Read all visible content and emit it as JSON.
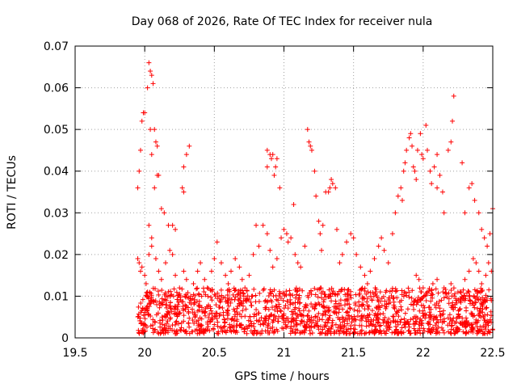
{
  "chart_data": {
    "type": "scatter",
    "title": "Day 068 of 2026, Rate Of TEC Index for receiver nula",
    "xlabel": "GPS time / hours",
    "ylabel": "ROTI / TECUs",
    "xlim": [
      19.5,
      22.5
    ],
    "ylim": [
      0,
      0.07
    ],
    "x_ticks": [
      19.5,
      20,
      20.5,
      21,
      21.5,
      22,
      22.5
    ],
    "x_tick_labels": [
      "19.5",
      "20",
      "20.5",
      "21",
      "21.5",
      "22",
      "22.5"
    ],
    "y_ticks": [
      0,
      0.01,
      0.02,
      0.03,
      0.04,
      0.05,
      0.06,
      0.07
    ],
    "y_tick_labels": [
      "0",
      "0.01",
      "0.02",
      "0.03",
      "0.04",
      "0.05",
      "0.06",
      "0.07"
    ],
    "grid": true,
    "marker": "+",
    "color": "#ff0000",
    "series": [
      {
        "name": "ROTI",
        "points": [
          [
            19.95,
            0.036
          ],
          [
            19.96,
            0.04
          ],
          [
            19.97,
            0.045
          ],
          [
            19.98,
            0.052
          ],
          [
            19.99,
            0.054
          ],
          [
            20.0,
            0.054
          ],
          [
            20.02,
            0.06
          ],
          [
            20.03,
            0.066
          ],
          [
            20.04,
            0.064
          ],
          [
            20.05,
            0.063
          ],
          [
            20.06,
            0.061
          ],
          [
            20.04,
            0.05
          ],
          [
            20.07,
            0.05
          ],
          [
            20.08,
            0.047
          ],
          [
            20.09,
            0.046
          ],
          [
            20.05,
            0.044
          ],
          [
            20.07,
            0.036
          ],
          [
            20.09,
            0.039
          ],
          [
            20.1,
            0.039
          ],
          [
            20.12,
            0.031
          ],
          [
            20.14,
            0.03
          ],
          [
            20.03,
            0.027
          ],
          [
            20.05,
            0.024
          ],
          [
            20.17,
            0.027
          ],
          [
            20.2,
            0.027
          ],
          [
            20.22,
            0.026
          ],
          [
            20.27,
            0.036
          ],
          [
            20.28,
            0.041
          ],
          [
            20.3,
            0.044
          ],
          [
            20.32,
            0.046
          ],
          [
            20.28,
            0.035
          ],
          [
            19.95,
            0.019
          ],
          [
            19.96,
            0.018
          ],
          [
            19.98,
            0.017
          ],
          [
            20.0,
            0.015
          ],
          [
            20.01,
            0.013
          ],
          [
            20.02,
            0.011
          ],
          [
            19.97,
            0.016
          ],
          [
            20.03,
            0.02
          ],
          [
            20.05,
            0.022
          ],
          [
            20.08,
            0.019
          ],
          [
            20.1,
            0.016
          ],
          [
            20.12,
            0.014
          ],
          [
            20.15,
            0.018
          ],
          [
            20.18,
            0.021
          ],
          [
            20.2,
            0.02
          ],
          [
            20.22,
            0.015
          ],
          [
            20.25,
            0.012
          ],
          [
            20.28,
            0.016
          ],
          [
            20.3,
            0.014
          ],
          [
            20.33,
            0.01
          ],
          [
            20.35,
            0.013
          ],
          [
            20.38,
            0.016
          ],
          [
            20.4,
            0.018
          ],
          [
            20.43,
            0.014
          ],
          [
            20.45,
            0.012
          ],
          [
            20.48,
            0.016
          ],
          [
            20.5,
            0.019
          ],
          [
            20.52,
            0.023
          ],
          [
            20.55,
            0.018
          ],
          [
            20.58,
            0.015
          ],
          [
            20.6,
            0.013
          ],
          [
            20.62,
            0.016
          ],
          [
            20.65,
            0.019
          ],
          [
            20.68,
            0.017
          ],
          [
            20.7,
            0.014
          ],
          [
            20.72,
            0.012
          ],
          [
            20.75,
            0.015
          ],
          [
            20.78,
            0.02
          ],
          [
            20.8,
            0.027
          ],
          [
            20.82,
            0.022
          ],
          [
            20.85,
            0.027
          ],
          [
            20.88,
            0.025
          ],
          [
            20.9,
            0.021
          ],
          [
            20.92,
            0.017
          ],
          [
            20.95,
            0.019
          ],
          [
            20.98,
            0.024
          ],
          [
            20.88,
            0.045
          ],
          [
            20.9,
            0.044
          ],
          [
            20.91,
            0.043
          ],
          [
            20.92,
            0.044
          ],
          [
            20.93,
            0.039
          ],
          [
            20.94,
            0.041
          ],
          [
            20.95,
            0.043
          ],
          [
            20.97,
            0.036
          ],
          [
            20.88,
            0.041
          ],
          [
            21.0,
            0.026
          ],
          [
            21.02,
            0.025
          ],
          [
            21.03,
            0.023
          ],
          [
            21.05,
            0.024
          ],
          [
            21.07,
            0.032
          ],
          [
            21.08,
            0.02
          ],
          [
            21.1,
            0.018
          ],
          [
            21.12,
            0.017
          ],
          [
            21.15,
            0.022
          ],
          [
            21.17,
            0.05
          ],
          [
            21.18,
            0.047
          ],
          [
            21.19,
            0.046
          ],
          [
            21.2,
            0.045
          ],
          [
            21.22,
            0.04
          ],
          [
            21.23,
            0.034
          ],
          [
            21.25,
            0.028
          ],
          [
            21.26,
            0.025
          ],
          [
            21.27,
            0.021
          ],
          [
            21.28,
            0.027
          ],
          [
            21.3,
            0.035
          ],
          [
            21.32,
            0.035
          ],
          [
            21.33,
            0.036
          ],
          [
            21.34,
            0.038
          ],
          [
            21.35,
            0.037
          ],
          [
            21.37,
            0.036
          ],
          [
            21.38,
            0.026
          ],
          [
            21.4,
            0.018
          ],
          [
            21.42,
            0.02
          ],
          [
            21.45,
            0.023
          ],
          [
            21.48,
            0.025
          ],
          [
            21.5,
            0.024
          ],
          [
            21.52,
            0.02
          ],
          [
            21.55,
            0.017
          ],
          [
            21.58,
            0.015
          ],
          [
            21.6,
            0.013
          ],
          [
            21.62,
            0.016
          ],
          [
            21.65,
            0.019
          ],
          [
            21.68,
            0.022
          ],
          [
            21.7,
            0.024
          ],
          [
            21.72,
            0.021
          ],
          [
            21.75,
            0.018
          ],
          [
            21.78,
            0.025
          ],
          [
            21.8,
            0.03
          ],
          [
            21.82,
            0.034
          ],
          [
            21.84,
            0.036
          ],
          [
            21.86,
            0.04
          ],
          [
            21.87,
            0.042
          ],
          [
            21.88,
            0.045
          ],
          [
            21.9,
            0.048
          ],
          [
            21.91,
            0.049
          ],
          [
            21.92,
            0.046
          ],
          [
            21.93,
            0.041
          ],
          [
            21.94,
            0.04
          ],
          [
            21.95,
            0.038
          ],
          [
            21.96,
            0.045
          ],
          [
            21.98,
            0.049
          ],
          [
            21.99,
            0.044
          ],
          [
            22.0,
            0.043
          ],
          [
            22.02,
            0.051
          ],
          [
            22.03,
            0.045
          ],
          [
            22.05,
            0.04
          ],
          [
            22.06,
            0.037
          ],
          [
            22.08,
            0.041
          ],
          [
            22.1,
            0.044
          ],
          [
            22.12,
            0.039
          ],
          [
            22.14,
            0.035
          ],
          [
            22.15,
            0.03
          ],
          [
            22.18,
            0.045
          ],
          [
            22.2,
            0.047
          ],
          [
            22.21,
            0.052
          ],
          [
            22.22,
            0.058
          ],
          [
            22.3,
            0.03
          ],
          [
            22.33,
            0.036
          ],
          [
            22.35,
            0.037
          ],
          [
            22.37,
            0.033
          ],
          [
            22.4,
            0.03
          ],
          [
            22.42,
            0.026
          ],
          [
            22.44,
            0.024
          ],
          [
            22.46,
            0.022
          ],
          [
            22.48,
            0.025
          ],
          [
            22.5,
            0.031
          ],
          [
            22.28,
            0.042
          ],
          [
            21.85,
            0.033
          ],
          [
            22.1,
            0.036
          ],
          [
            21.95,
            0.015
          ],
          [
            21.97,
            0.014
          ],
          [
            22.0,
            0.012
          ],
          [
            22.03,
            0.011
          ],
          [
            22.07,
            0.013
          ],
          [
            22.1,
            0.014
          ],
          [
            22.15,
            0.012
          ],
          [
            22.2,
            0.013
          ],
          [
            22.25,
            0.011
          ],
          [
            22.3,
            0.014
          ],
          [
            22.33,
            0.016
          ],
          [
            22.36,
            0.019
          ],
          [
            22.38,
            0.018
          ],
          [
            22.4,
            0.016
          ],
          [
            22.42,
            0.013
          ],
          [
            22.45,
            0.015
          ],
          [
            22.47,
            0.018
          ],
          [
            22.49,
            0.016
          ]
        ]
      }
    ],
    "dense_band": {
      "x_range": [
        19.95,
        22.5
      ],
      "y_range": [
        0.001,
        0.012
      ],
      "density_per_hour": 600
    }
  }
}
